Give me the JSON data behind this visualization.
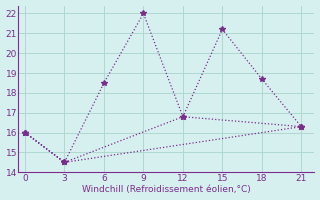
{
  "line1_x": [
    0,
    3,
    6,
    9,
    12,
    15,
    18,
    21
  ],
  "line1_y": [
    16.0,
    14.5,
    18.5,
    22.0,
    16.8,
    21.2,
    18.7,
    16.3
  ],
  "line2_x": [
    0,
    3,
    21
  ],
  "line2_y": [
    16.0,
    14.5,
    16.3
  ],
  "line3_x": [
    0,
    3,
    12,
    21
  ],
  "line3_y": [
    16.0,
    14.5,
    16.8,
    16.3
  ],
  "line_color": "#7b2d8b",
  "background_color": "#d6f0f0",
  "grid_color": "#b0d8d0",
  "xlabel": "Windchill (Refroidissement éolien,°C)",
  "xlim": [
    -0.5,
    22
  ],
  "ylim": [
    14,
    22.4
  ],
  "xticks": [
    0,
    3,
    6,
    9,
    12,
    15,
    18,
    21
  ],
  "yticks": [
    14,
    15,
    16,
    17,
    18,
    19,
    20,
    21,
    22
  ],
  "marker": "*",
  "markersize": 4,
  "linewidth": 0.9,
  "tick_fontsize": 6.5,
  "xlabel_fontsize": 6.5
}
